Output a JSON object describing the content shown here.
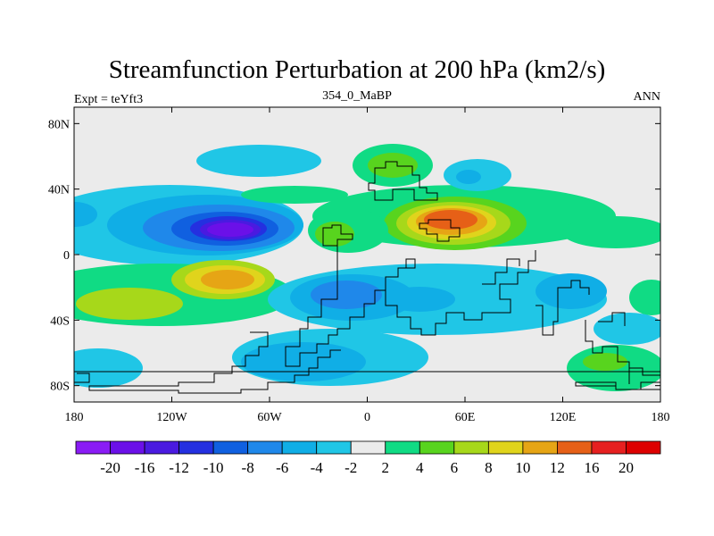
{
  "header": {
    "title": "Streamfunction Perturbation at 200 hPa (km2/s)",
    "experiment": "Expt = teYft3",
    "case": "354_0_MaBP",
    "period": "ANN"
  },
  "map": {
    "lon_range": [
      -180,
      180
    ],
    "lat_range": [
      -90,
      90
    ],
    "lon_ticks": [
      {
        "value": -180,
        "label": "180"
      },
      {
        "value": -120,
        "label": "120W"
      },
      {
        "value": -60,
        "label": "60W"
      },
      {
        "value": 0,
        "label": "0"
      },
      {
        "value": 60,
        "label": "60E"
      },
      {
        "value": 120,
        "label": "120E"
      },
      {
        "value": 180,
        "label": "180"
      }
    ],
    "lat_ticks": [
      {
        "value": 80,
        "label": "80N"
      },
      {
        "value": 40,
        "label": "40N"
      },
      {
        "value": 0,
        "label": "0"
      },
      {
        "value": -40,
        "label": "40S"
      },
      {
        "value": -80,
        "label": "80S"
      }
    ]
  },
  "colorbar": {
    "labels": [
      "-20",
      "-16",
      "-12",
      "-10",
      "-8",
      "-6",
      "-4",
      "-2",
      "2",
      "4",
      "6",
      "8",
      "10",
      "12",
      "16",
      "20"
    ],
    "colors": [
      "#8a1cf5",
      "#6b10e8",
      "#4a1ae0",
      "#2430e0",
      "#1060e0",
      "#1f88ea",
      "#10aee6",
      "#20c6e6",
      "#ebebeb",
      "#10db84",
      "#58d41e",
      "#a7d81a",
      "#e0d41c",
      "#e6a515",
      "#e66017",
      "#e62020",
      "#dd0000"
    ]
  }
}
